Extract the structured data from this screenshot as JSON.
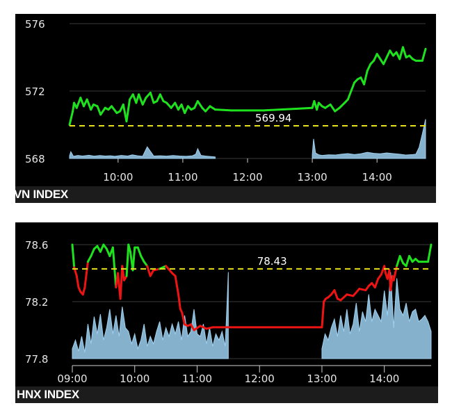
{
  "colors": {
    "panel_bg": "#000000",
    "footer_bg": "#1c1c1c",
    "up_line": "#1fe21f",
    "down_line": "#ee1414",
    "reference_line": "#e6e21c",
    "volume": "#9ed0f0",
    "grid": "#3a3a3a"
  },
  "chart_data": [
    {
      "id": "vn",
      "type": "line",
      "title": "VN INDEX",
      "reference_label": "569.94",
      "reference_value": 569.94,
      "xlim": [
        9.25,
        14.75
      ],
      "ylim": [
        568,
        576
      ],
      "y_ticks": [
        568,
        572,
        576
      ],
      "y_tick_labels": [
        "568",
        "572",
        "576"
      ],
      "x_ticks": [
        10,
        11,
        12,
        13,
        14
      ],
      "x_tick_labels": [
        "10:00",
        "11:00",
        "12:00",
        "13:00",
        "14:00"
      ],
      "grid": true,
      "series": [
        {
          "x": [
            9.25,
            9.3,
            9.32,
            9.36,
            9.42,
            9.47,
            9.52,
            9.58,
            9.62,
            9.68,
            9.73,
            9.8,
            9.85,
            9.9,
            9.98,
            10.03,
            10.08,
            10.13,
            10.18,
            10.23,
            10.28,
            10.32,
            10.38,
            10.43,
            10.5,
            10.55,
            10.6,
            10.65,
            10.7,
            10.75,
            10.82,
            10.88,
            10.93,
            10.98,
            11.03,
            11.08,
            11.13,
            11.18,
            11.23,
            11.3,
            11.35,
            11.42,
            11.5,
            11.75,
            12.25,
            12.75,
            13.0,
            13.03,
            13.07,
            13.1,
            13.15,
            13.2,
            13.28,
            13.35,
            13.42,
            13.5,
            13.55,
            13.6,
            13.65,
            13.7,
            13.75,
            13.8,
            13.85,
            13.9,
            13.95,
            14.0,
            14.05,
            14.1,
            14.15,
            14.2,
            14.25,
            14.3,
            14.35,
            14.4,
            14.45,
            14.5,
            14.55,
            14.6,
            14.65,
            14.7,
            14.75
          ],
          "y": [
            570.0,
            570.8,
            571.3,
            571.0,
            571.6,
            571.1,
            571.5,
            570.9,
            571.2,
            571.1,
            570.6,
            571.0,
            570.9,
            571.1,
            570.7,
            570.8,
            571.2,
            570.2,
            571.5,
            571.8,
            571.3,
            571.8,
            571.2,
            571.6,
            571.9,
            571.3,
            571.4,
            571.8,
            571.4,
            571.3,
            571.0,
            571.3,
            570.9,
            571.2,
            570.7,
            571.1,
            570.9,
            571.0,
            571.4,
            571.0,
            570.8,
            571.1,
            570.9,
            570.85,
            570.85,
            570.95,
            571.0,
            571.4,
            570.9,
            571.3,
            571.1,
            571.0,
            571.2,
            570.8,
            571.0,
            571.3,
            571.5,
            572.0,
            572.5,
            572.7,
            572.8,
            572.4,
            573.2,
            573.6,
            573.8,
            574.2,
            573.9,
            573.6,
            574.0,
            574.4,
            574.1,
            574.3,
            573.9,
            574.6,
            574.0,
            574.1,
            573.9,
            573.8,
            573.8,
            573.8,
            574.5
          ]
        }
      ],
      "volume": {
        "x": [
          9.25,
          9.27,
          9.31,
          9.38,
          9.45,
          9.55,
          9.63,
          9.72,
          9.8,
          9.88,
          9.95,
          10.05,
          10.15,
          10.22,
          10.3,
          10.38,
          10.45,
          10.55,
          10.65,
          10.75,
          10.85,
          10.95,
          11.05,
          11.15,
          11.2,
          11.23,
          11.28,
          11.35,
          11.45,
          11.5,
          13.0,
          13.02,
          13.05,
          13.1,
          13.15,
          13.25,
          13.35,
          13.45,
          13.55,
          13.65,
          13.75,
          13.85,
          13.95,
          14.05,
          14.15,
          14.25,
          14.35,
          14.45,
          14.55,
          14.6,
          14.65,
          14.7,
          14.75
        ],
        "y": [
          0.22,
          0.55,
          0.18,
          0.25,
          0.2,
          0.26,
          0.19,
          0.24,
          0.2,
          0.22,
          0.18,
          0.25,
          0.2,
          0.3,
          0.22,
          0.18,
          0.95,
          0.2,
          0.22,
          0.19,
          0.24,
          0.2,
          0.18,
          0.22,
          0.35,
          0.8,
          0.25,
          0.2,
          0.15,
          0.12,
          0.3,
          1.6,
          0.45,
          0.3,
          0.25,
          0.3,
          0.28,
          0.35,
          0.4,
          0.32,
          0.38,
          0.5,
          0.42,
          0.38,
          0.45,
          0.4,
          0.35,
          0.28,
          0.32,
          0.35,
          0.9,
          2.0,
          3.2
        ]
      }
    },
    {
      "id": "hnx",
      "type": "line",
      "title": "HNX INDEX",
      "reference_label": "78.43",
      "reference_value": 78.43,
      "xlim": [
        9.0,
        14.75
      ],
      "ylim": [
        77.8,
        78.6
      ],
      "y_ticks": [
        77.8,
        78.2,
        78.6
      ],
      "y_tick_labels": [
        "77.8",
        "78.2",
        "78.6"
      ],
      "x_ticks": [
        9,
        10,
        11,
        12,
        13,
        14
      ],
      "x_tick_labels": [
        "09:00",
        "10:00",
        "11:00",
        "12:00",
        "13:00",
        "14:00"
      ],
      "grid": true,
      "series": [
        {
          "x": [
            9.0,
            9.03,
            9.07,
            9.1,
            9.13,
            9.17,
            9.2,
            9.25,
            9.3,
            9.35,
            9.4,
            9.45,
            9.5,
            9.55,
            9.6,
            9.65,
            9.7,
            9.73,
            9.77,
            9.8,
            9.83,
            9.87,
            9.9,
            9.93,
            9.97,
            10.0,
            10.05,
            10.1,
            10.15,
            10.2,
            10.25,
            10.3,
            10.4,
            10.5,
            10.6,
            10.65,
            10.7,
            10.73,
            10.76,
            10.8,
            10.85,
            10.9,
            10.95,
            11.05,
            11.15,
            11.25,
            11.35,
            11.5,
            12.0,
            12.5,
            13.0,
            13.03,
            13.06,
            13.1,
            13.15,
            13.2,
            13.25,
            13.3,
            13.4,
            13.5,
            13.6,
            13.7,
            13.75,
            13.8,
            13.85,
            13.9,
            13.95,
            14.0,
            14.02,
            14.05,
            14.08,
            14.1,
            14.13,
            14.15,
            14.2,
            14.25,
            14.3,
            14.35,
            14.4,
            14.45,
            14.5,
            14.55,
            14.6,
            14.65,
            14.7,
            14.75
          ],
          "y": [
            78.6,
            78.44,
            78.38,
            78.3,
            78.27,
            78.25,
            78.3,
            78.48,
            78.52,
            78.57,
            78.59,
            78.55,
            78.6,
            78.57,
            78.52,
            78.58,
            78.3,
            78.4,
            78.22,
            78.45,
            78.35,
            78.38,
            78.6,
            78.55,
            78.42,
            78.58,
            78.58,
            78.52,
            78.48,
            78.45,
            78.38,
            78.42,
            78.43,
            78.45,
            78.4,
            78.38,
            78.25,
            78.15,
            78.12,
            78.04,
            78.03,
            78.04,
            78.0,
            78.03,
            78.01,
            78.02,
            78.02,
            78.02,
            78.02,
            78.02,
            78.02,
            78.2,
            78.22,
            78.23,
            78.25,
            78.28,
            78.22,
            78.21,
            78.25,
            78.24,
            78.29,
            78.28,
            78.31,
            78.33,
            78.3,
            78.36,
            78.39,
            78.45,
            78.4,
            78.36,
            78.42,
            78.28,
            78.38,
            78.35,
            78.45,
            78.52,
            78.47,
            78.45,
            78.52,
            78.48,
            78.5,
            78.48,
            78.48,
            78.48,
            78.48,
            78.6
          ]
        }
      ],
      "volume": {
        "x": [
          9.0,
          9.05,
          9.1,
          9.15,
          9.2,
          9.25,
          9.3,
          9.35,
          9.4,
          9.45,
          9.5,
          9.55,
          9.6,
          9.65,
          9.7,
          9.75,
          9.8,
          9.85,
          9.9,
          9.95,
          10.0,
          10.05,
          10.1,
          10.15,
          10.2,
          10.25,
          10.3,
          10.35,
          10.4,
          10.45,
          10.5,
          10.55,
          10.6,
          10.65,
          10.7,
          10.75,
          10.8,
          10.85,
          10.9,
          10.95,
          11.0,
          11.05,
          11.1,
          11.15,
          11.2,
          11.25,
          11.3,
          11.35,
          11.4,
          11.45,
          11.5,
          13.0,
          13.05,
          13.1,
          13.15,
          13.2,
          13.25,
          13.3,
          13.35,
          13.4,
          13.45,
          13.5,
          13.55,
          13.6,
          13.65,
          13.7,
          13.75,
          13.8,
          13.85,
          13.9,
          13.95,
          14.0,
          14.05,
          14.1,
          14.15,
          14.2,
          14.25,
          14.3,
          14.35,
          14.4,
          14.45,
          14.5,
          14.55,
          14.6,
          14.65,
          14.7,
          14.75
        ],
        "y": [
          0.08,
          0.15,
          0.06,
          0.18,
          0.05,
          0.28,
          0.12,
          0.34,
          0.2,
          0.36,
          0.15,
          0.25,
          0.4,
          0.2,
          0.35,
          0.18,
          0.42,
          0.25,
          0.22,
          0.12,
          0.2,
          0.08,
          0.15,
          0.28,
          0.1,
          0.18,
          0.12,
          0.22,
          0.3,
          0.15,
          0.25,
          0.18,
          0.28,
          0.2,
          0.3,
          0.15,
          0.35,
          0.18,
          0.22,
          0.4,
          0.2,
          0.18,
          0.28,
          0.12,
          0.25,
          0.1,
          0.2,
          0.15,
          0.22,
          0.1,
          0.7,
          0.08,
          0.2,
          0.15,
          0.25,
          0.32,
          0.18,
          0.35,
          0.22,
          0.4,
          0.2,
          0.28,
          0.45,
          0.22,
          0.38,
          0.3,
          0.52,
          0.3,
          0.4,
          0.35,
          0.3,
          0.55,
          0.35,
          0.7,
          0.25,
          0.65,
          0.4,
          0.35,
          0.45,
          0.3,
          0.38,
          0.4,
          0.3,
          0.32,
          0.35,
          0.3,
          0.22
        ]
      }
    }
  ]
}
